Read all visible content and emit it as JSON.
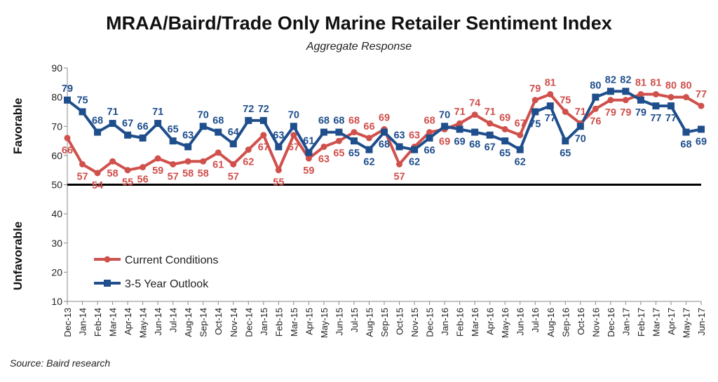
{
  "title": "MRAA/Baird/Trade Only Marine Retailer Sentiment Index",
  "subtitle": "Aggregate Response",
  "source": "Source: Baird research",
  "labels": {
    "favorable": "Favorable",
    "unfavorable": "Unfavorable"
  },
  "chart_data": {
    "type": "line",
    "categories": [
      "Dec-13",
      "Jan-14",
      "Feb-14",
      "Mar-14",
      "Apr-14",
      "May-14",
      "Jun-14",
      "Jul-14",
      "Aug-14",
      "Sep-14",
      "Oct-14",
      "Nov-14",
      "Dec-14",
      "Jan-15",
      "Feb-15",
      "Mar-15",
      "Apr-15",
      "May-15",
      "Jun-15",
      "Jul-15",
      "Aug-15",
      "Sep-15",
      "Oct-15",
      "Nov-15",
      "Dec-15",
      "Jan-16",
      "Feb-16",
      "Mar-16",
      "Apr-16",
      "May-16",
      "Jun-16",
      "Jul-16",
      "Aug-16",
      "Sep-16",
      "Oct-16",
      "Nov-16",
      "Dec-16",
      "Jan-17",
      "Feb-17",
      "Mar-17",
      "Apr-17",
      "May-17",
      "Jun-17"
    ],
    "series": [
      {
        "name": "Current Conditions",
        "color": "#d0504c",
        "marker": "circle",
        "values": [
          66,
          57,
          54,
          58,
          55,
          56,
          59,
          57,
          58,
          58,
          61,
          57,
          62,
          67,
          55,
          67,
          59,
          63,
          65,
          68,
          66,
          69,
          57,
          63,
          68,
          69,
          71,
          74,
          71,
          69,
          67,
          79,
          81,
          75,
          71,
          76,
          79,
          79,
          81,
          81,
          80,
          80,
          77
        ]
      },
      {
        "name": "3-5 Year Outlook",
        "color": "#1f4e8c",
        "marker": "square",
        "values": [
          79,
          75,
          68,
          71,
          67,
          66,
          71,
          65,
          63,
          70,
          68,
          64,
          72,
          72,
          63,
          70,
          61,
          68,
          68,
          65,
          62,
          68,
          63,
          62,
          66,
          70,
          69,
          68,
          67,
          65,
          62,
          75,
          77,
          65,
          70,
          80,
          82,
          82,
          79,
          77,
          77,
          68,
          69
        ]
      }
    ],
    "ylim": [
      10,
      90
    ],
    "yticks": [
      10,
      20,
      30,
      40,
      50,
      60,
      70,
      80,
      90
    ],
    "reference_line": 50,
    "grid": false,
    "legend_position": "lower-left"
  }
}
